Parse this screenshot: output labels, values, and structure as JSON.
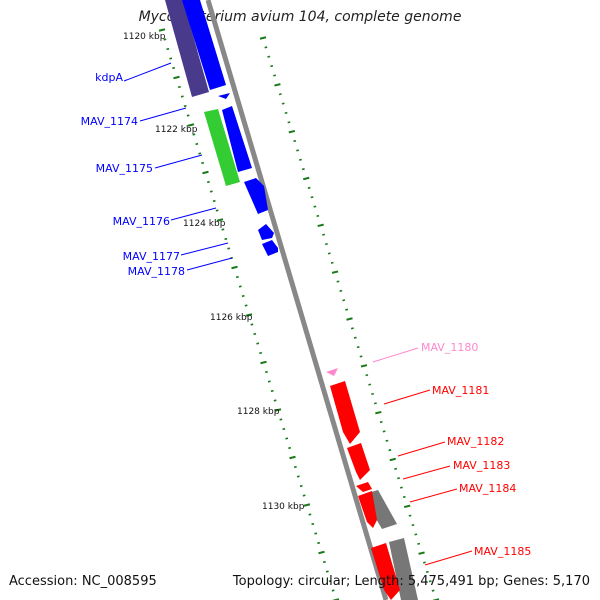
{
  "title": "Mycobacterium avium 104, complete genome",
  "footer": {
    "accession": "Accession: NC_008595",
    "summary": "Topology: circular; Length: 5,475,491 bp; Genes: 5,170"
  },
  "colors": {
    "backbone": "#888888",
    "tick": "#1a7a1a",
    "blue": "#0000ff",
    "darkblue": "#4a3a8c",
    "green": "#33cc33",
    "red": "#ff0000",
    "pink": "#ff88cc",
    "gray": "#777777"
  },
  "scale": {
    "unit": "kbp",
    "labels": [
      "1120 kbp",
      "1122 kbp",
      "1124 kbp",
      "1126 kbp",
      "1128 kbp",
      "1130 kbp"
    ]
  },
  "genes": [
    {
      "name": "kdpA",
      "color": "#0000ff"
    },
    {
      "name": "MAV_1174",
      "color": "#0000ff"
    },
    {
      "name": "MAV_1175",
      "color": "#0000ff"
    },
    {
      "name": "MAV_1176",
      "color": "#0000ff"
    },
    {
      "name": "MAV_1177",
      "color": "#0000ff"
    },
    {
      "name": "MAV_1178",
      "color": "#0000ff"
    },
    {
      "name": "MAV_1180",
      "color": "#ff88cc"
    },
    {
      "name": "MAV_1181",
      "color": "#ff0000"
    },
    {
      "name": "MAV_1182",
      "color": "#ff0000"
    },
    {
      "name": "MAV_1183",
      "color": "#ff0000"
    },
    {
      "name": "MAV_1184",
      "color": "#ff0000"
    },
    {
      "name": "MAV_1185",
      "color": "#ff0000"
    }
  ]
}
